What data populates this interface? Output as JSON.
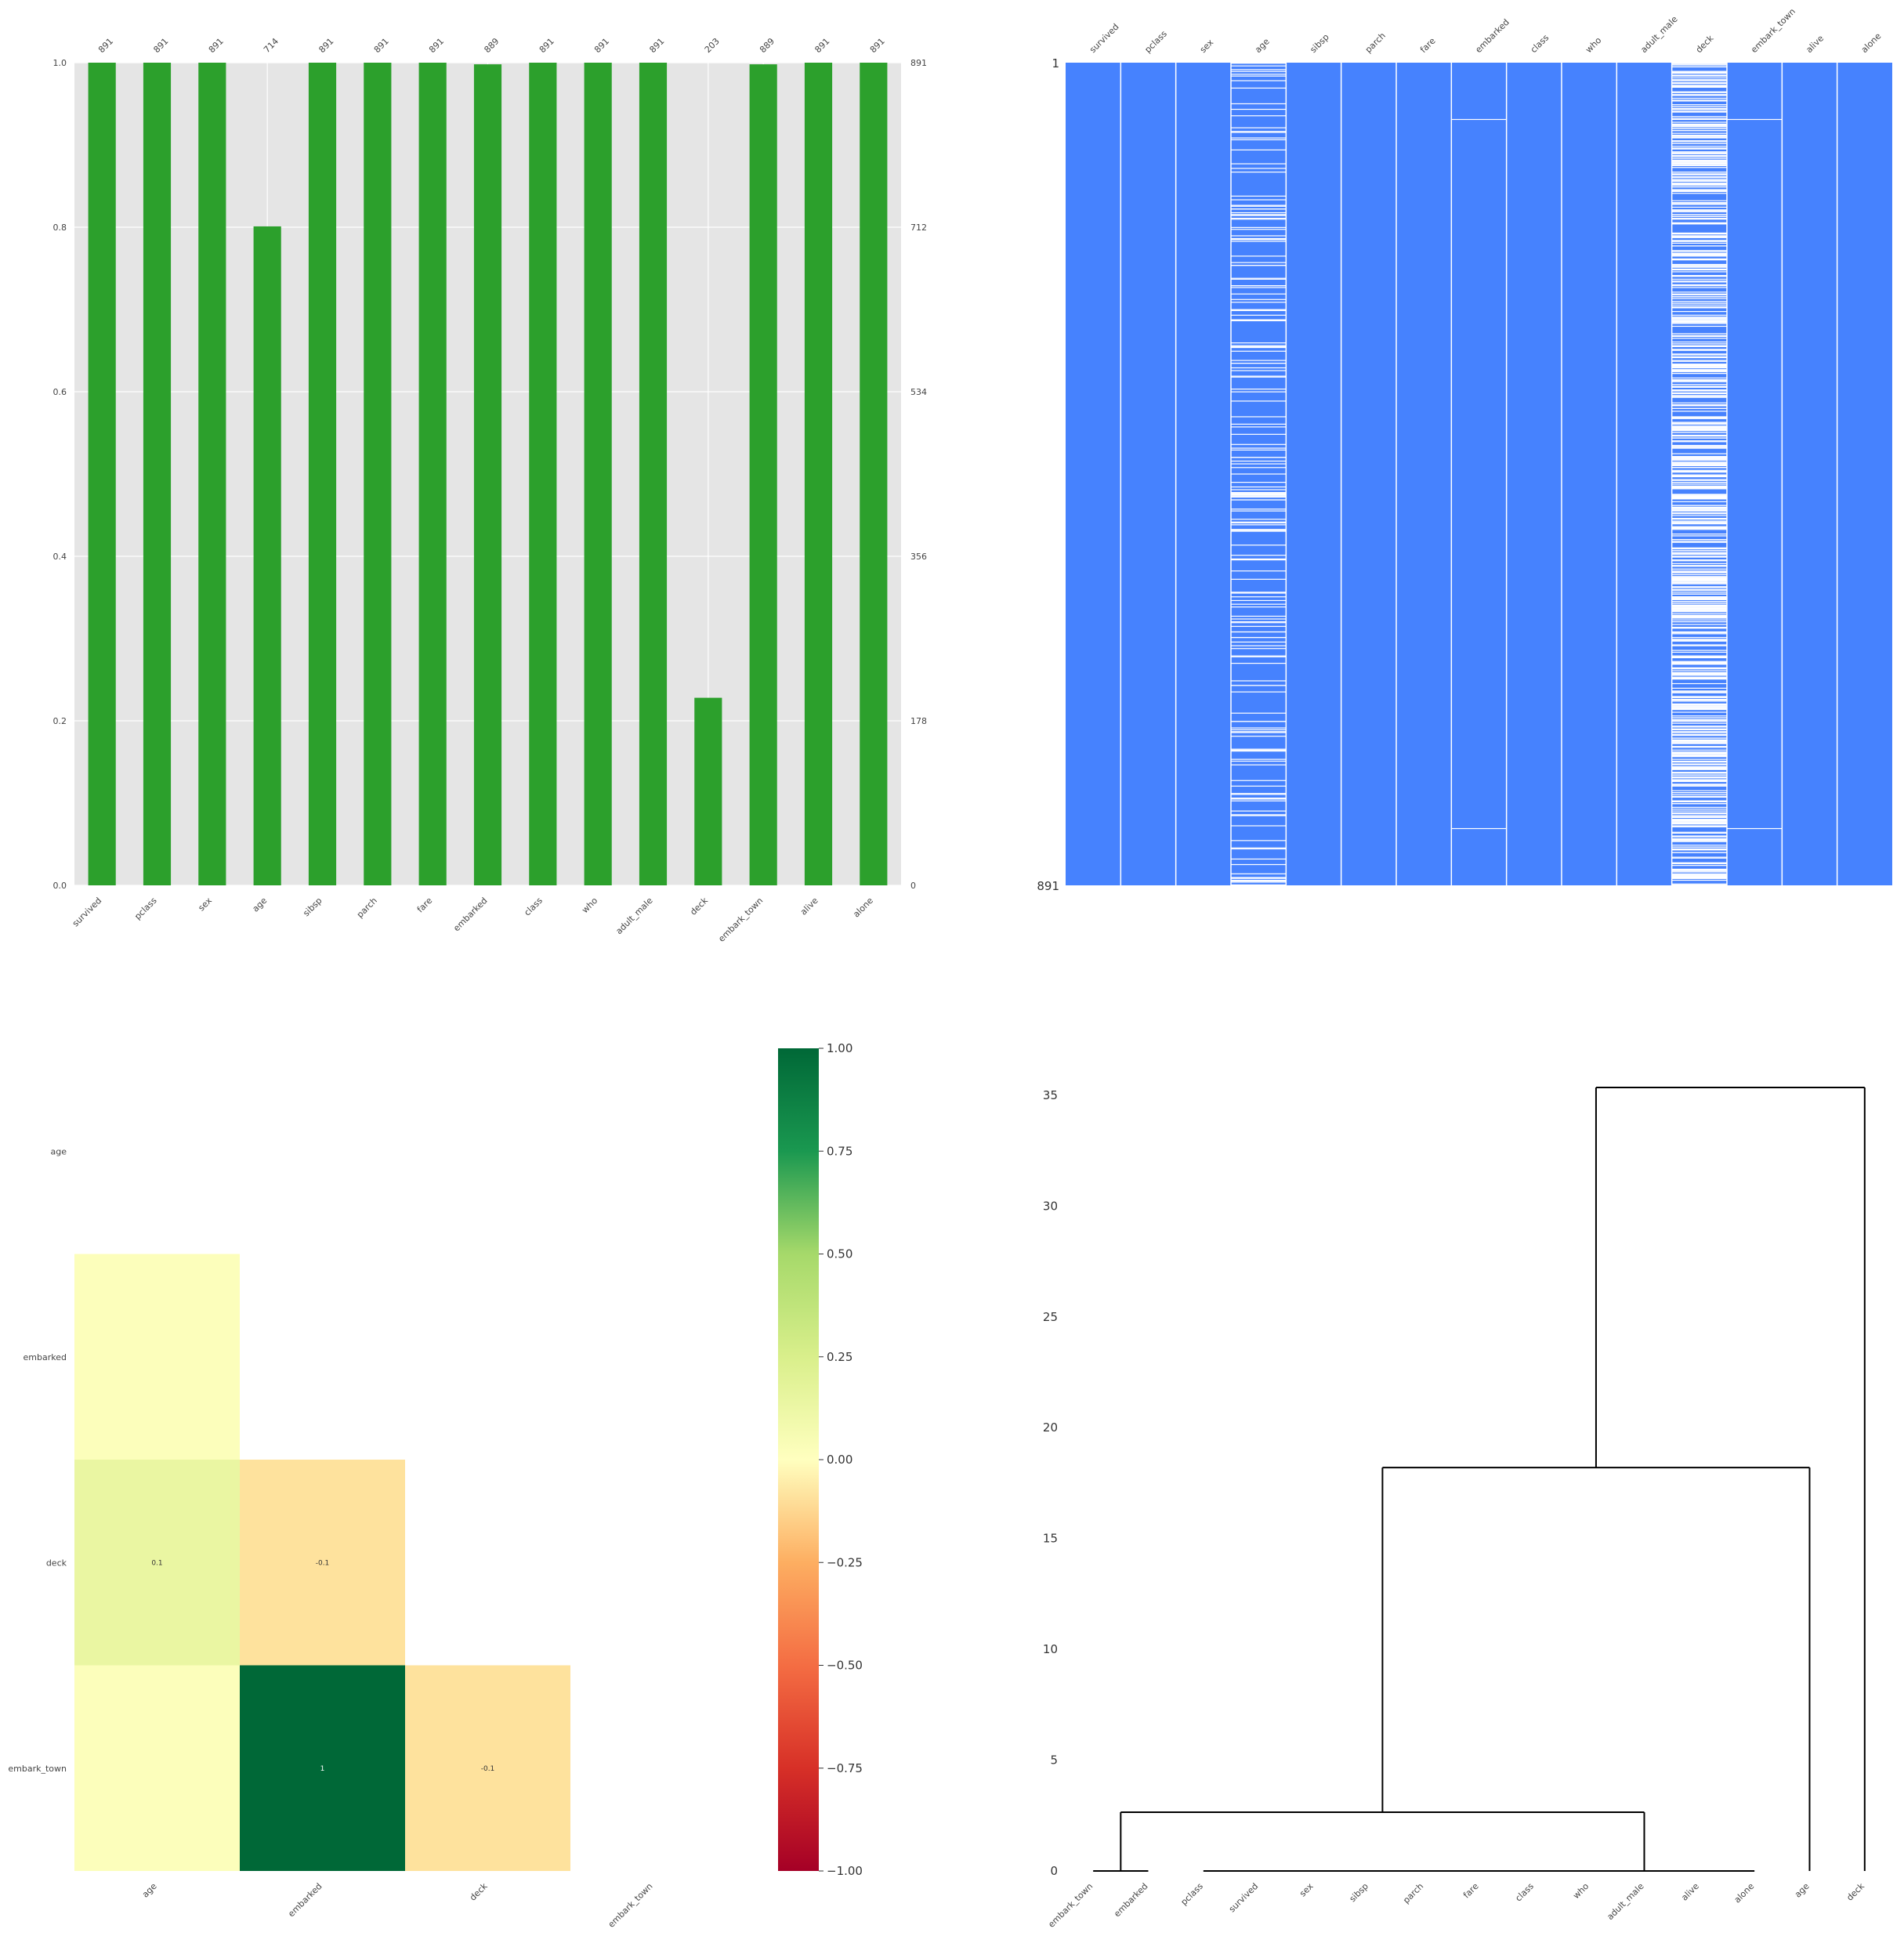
{
  "colors": {
    "bar_fill": "#2ca02c",
    "bar_panel_bg": "#e5e5e5",
    "matrix_fill": "#4682fe",
    "dendro_line": "#000000"
  },
  "chart_data": [
    {
      "type": "bar",
      "title": "",
      "categories": [
        "survived",
        "pclass",
        "sex",
        "age",
        "sibsp",
        "parch",
        "fare",
        "embarked",
        "class",
        "who",
        "adult_male",
        "deck",
        "embark_town",
        "alive",
        "alone"
      ],
      "values": [
        1.0,
        1.0,
        1.0,
        0.801,
        1.0,
        1.0,
        1.0,
        0.998,
        1.0,
        1.0,
        1.0,
        0.228,
        0.998,
        1.0,
        1.0
      ],
      "count_labels": [
        "891",
        "891",
        "891",
        "714",
        "891",
        "891",
        "891",
        "889",
        "891",
        "891",
        "891",
        "203",
        "889",
        "891",
        "891"
      ],
      "ylim": [
        0,
        1.0
      ],
      "yticks": [
        "0.0",
        "0.2",
        "0.4",
        "0.6",
        "0.8",
        "1.0"
      ],
      "right_ticks": [
        "0",
        "178",
        "356",
        "534",
        "712",
        "891"
      ],
      "grid": true
    },
    {
      "type": "heatmap",
      "title": "",
      "columns": [
        "survived",
        "pclass",
        "sex",
        "age",
        "sibsp",
        "parch",
        "fare",
        "embarked",
        "class",
        "who",
        "adult_male",
        "deck",
        "embark_town",
        "alive",
        "alone"
      ],
      "row_labels": [
        "1",
        "891"
      ],
      "non_null_counts": [
        891,
        891,
        891,
        714,
        891,
        891,
        891,
        889,
        891,
        891,
        891,
        203,
        889,
        891,
        891
      ],
      "total_rows": 891
    },
    {
      "type": "heatmap",
      "title": "",
      "rows": [
        "age",
        "embarked",
        "deck",
        "embark_town"
      ],
      "columns": [
        "age",
        "embarked",
        "deck",
        "embark_town"
      ],
      "values": [
        [
          null,
          null,
          null,
          null
        ],
        [
          0.02,
          null,
          null,
          null
        ],
        [
          0.14,
          -0.09,
          null,
          null
        ],
        [
          0.02,
          1.0,
          -0.09,
          null
        ]
      ],
      "cell_labels": [
        [
          "",
          "",
          "",
          ""
        ],
        [
          "",
          "",
          "",
          ""
        ],
        [
          "0.1",
          "-0.1",
          "",
          ""
        ],
        [
          "",
          "1",
          "-0.1",
          ""
        ]
      ],
      "colorbar_ticks": [
        "−1.00",
        "−0.75",
        "−0.50",
        "−0.25",
        "0.00",
        "0.25",
        "0.50",
        "0.75",
        "1.00"
      ],
      "colormap": "RdYlGn",
      "vmin": -1,
      "vmax": 1
    },
    {
      "type": "dendrogram",
      "title": "",
      "leaves": [
        "embark_town",
        "embarked",
        "pclass",
        "survived",
        "sex",
        "sibsp",
        "parch",
        "fare",
        "class",
        "who",
        "adult_male",
        "alive",
        "alone",
        "age",
        "deck"
      ],
      "yticks": [
        "0",
        "5",
        "10",
        "15",
        "20",
        "25",
        "30",
        "35"
      ],
      "ylim": [
        0,
        37
      ],
      "merges": [
        {
          "left": "embark_town",
          "right": "embarked",
          "height": 0
        },
        {
          "left": "flat-group",
          "right": "alone",
          "height": 0,
          "note_leaves": [
            "pclass",
            "survived",
            "sex",
            "sibsp",
            "parch",
            "fare",
            "class",
            "who",
            "adult_male",
            "alive",
            "alone"
          ]
        },
        {
          "left": "embark_town+embarked",
          "right": "flat-group",
          "height": 2.65
        },
        {
          "left": "low-cluster",
          "right": "age",
          "height": 18.2
        },
        {
          "left": "upper-cluster",
          "right": "deck",
          "height": 35.35
        }
      ]
    }
  ]
}
